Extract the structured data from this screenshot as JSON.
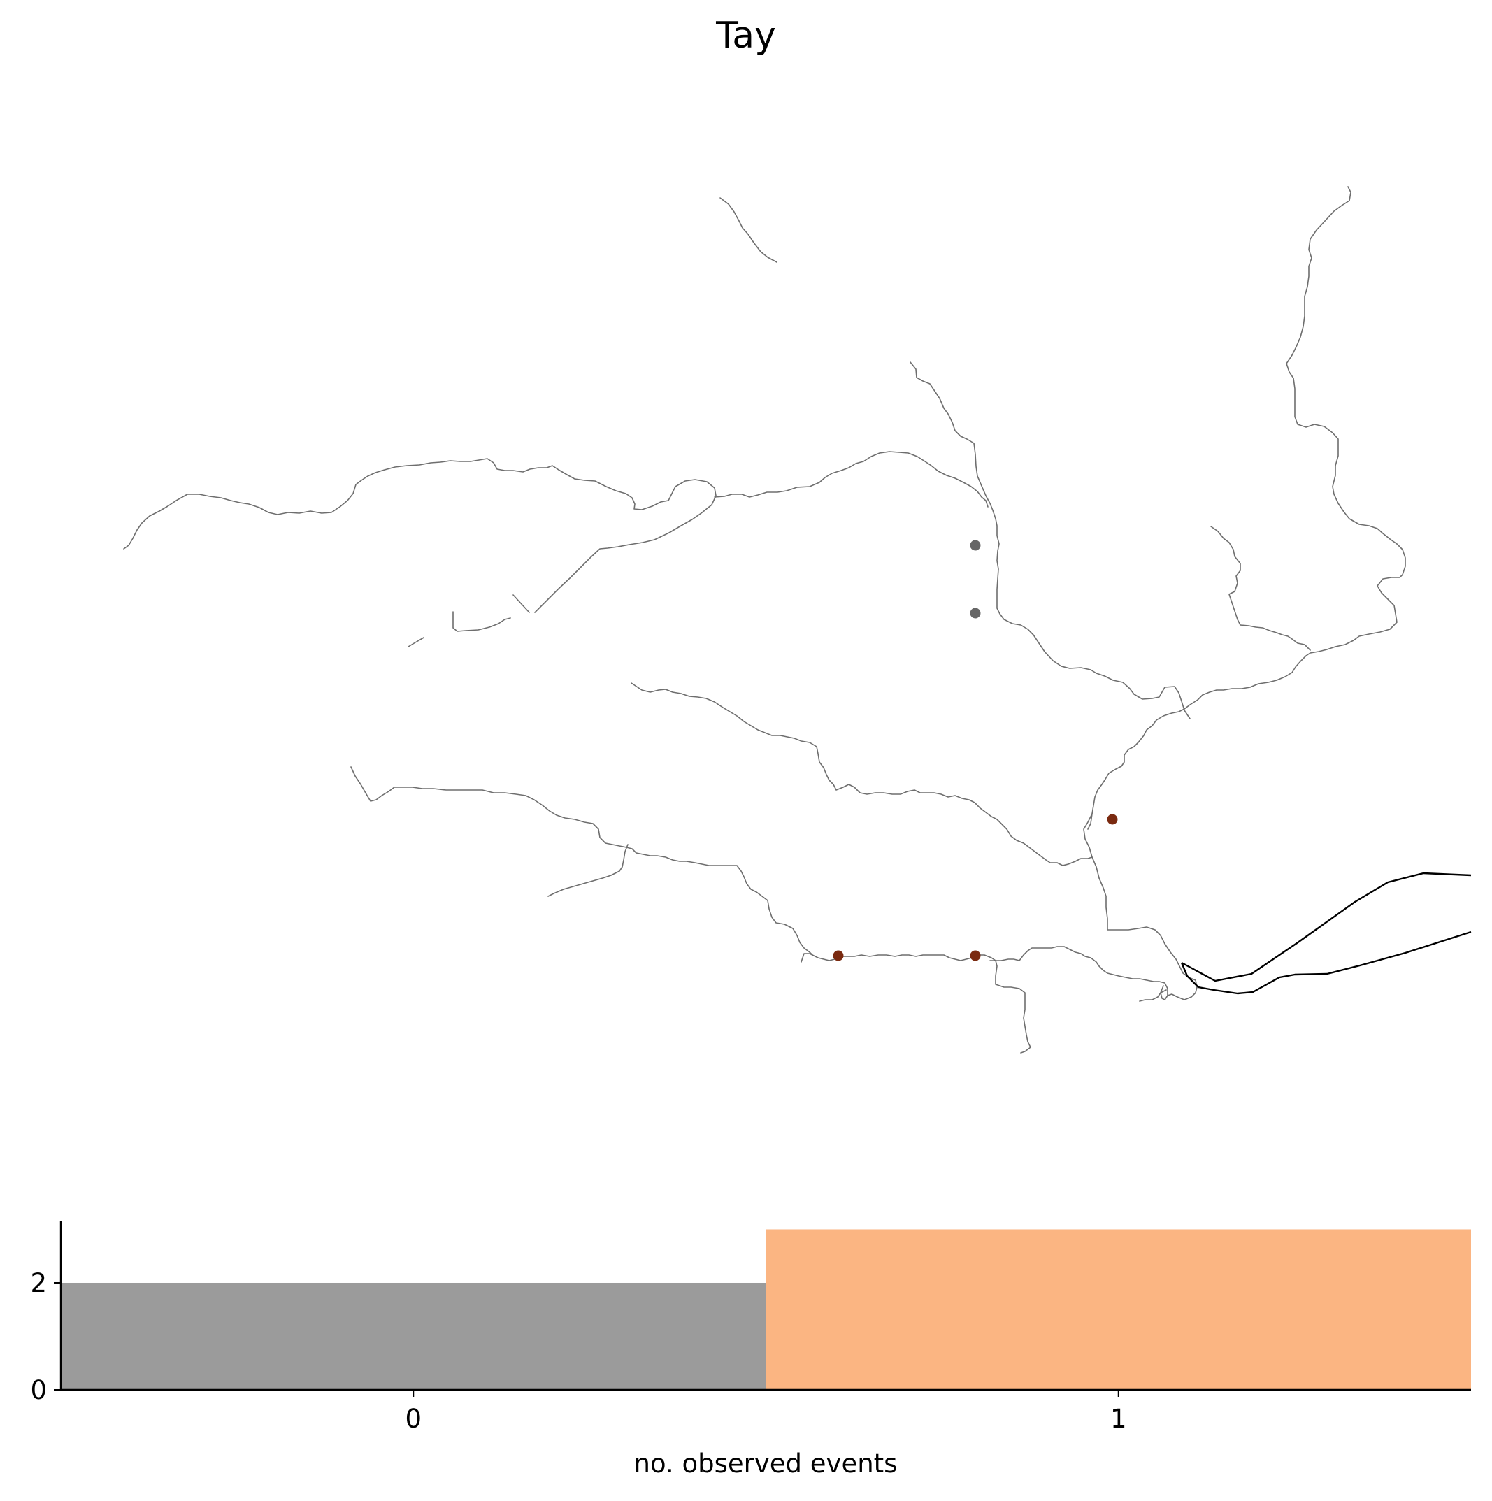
{
  "title": "Tay",
  "colors": {
    "river": "#6e6e6e",
    "estuary": "#000000",
    "site_no_event": "#666666",
    "site_event": "#7a2a10",
    "bar_zero": "#9b9b9b",
    "bar_one": "#fbb582"
  },
  "sites": [
    {
      "category": 0
    },
    {
      "category": 0
    },
    {
      "category": 1
    },
    {
      "category": 1
    },
    {
      "category": 1
    }
  ],
  "chart_data": {
    "type": "bar",
    "categories": [
      "0",
      "1"
    ],
    "values": [
      2,
      3
    ],
    "xlabel": "no. observed events",
    "ylabel": "",
    "yticks": [
      "0",
      "2"
    ],
    "ylim": [
      0,
      3.15
    ],
    "bar_colors": [
      "#9b9b9b",
      "#fbb582"
    ]
  }
}
